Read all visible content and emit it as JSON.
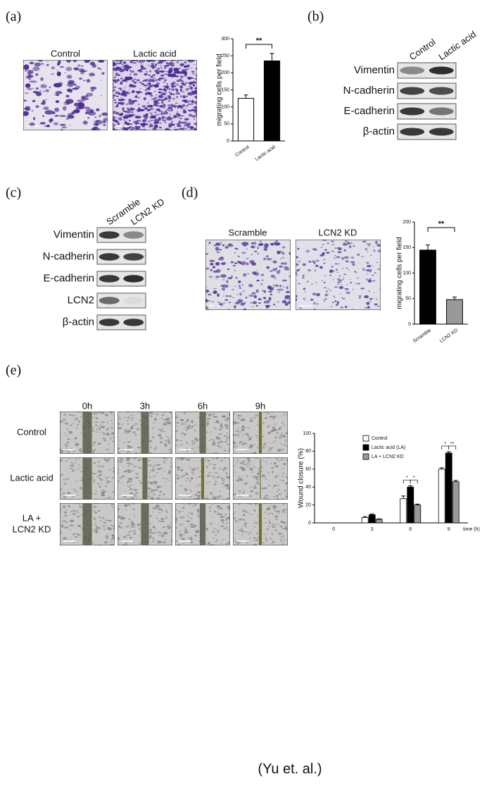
{
  "panel_labels": [
    "(a)",
    "(b)",
    "(c)",
    "(d)",
    "(e)"
  ],
  "panel_a": {
    "image_labels": [
      "Control",
      "Lactic acid"
    ]
  },
  "panel_b": {
    "columns": [
      "Control",
      "Lactic acid"
    ],
    "rows": [
      "Vimentin",
      "N-cadherin",
      "E-cadherin",
      "β-actin"
    ]
  },
  "panel_c": {
    "columns": [
      "Scramble",
      "LCN2 KD"
    ],
    "rows": [
      "Vimentin",
      "N-cadherin",
      "E-cadherin",
      "LCN2",
      "β-actin"
    ]
  },
  "panel_d": {
    "image_labels": [
      "Scramble",
      "LCN2 KD"
    ]
  },
  "panel_e": {
    "time_labels": [
      "0h",
      "3h",
      "6h",
      "9h"
    ],
    "row_labels": [
      [
        "Control"
      ],
      [
        "Lactic acid"
      ],
      [
        "LA +",
        "LCN2 KD"
      ]
    ]
  },
  "chart_data": [
    {
      "type": "bar",
      "ylabel": "migrating cells per field",
      "categories": [
        "Control",
        "Lactic acid"
      ],
      "values": [
        125,
        235
      ],
      "errors": [
        10,
        22
      ],
      "colors": [
        "#ffffff",
        "#000000"
      ],
      "ylim": [
        0,
        300
      ],
      "yticks": [
        0,
        50,
        100,
        150,
        200,
        250,
        300
      ],
      "annotations": [
        "**"
      ]
    },
    {
      "type": "bar",
      "ylabel": "migrating cells per field",
      "categories": [
        "Scramble",
        "LCN2 KD"
      ],
      "values": [
        145,
        48
      ],
      "errors": [
        10,
        5
      ],
      "colors": [
        "#000000",
        "#999999"
      ],
      "ylim": [
        0,
        200
      ],
      "yticks": [
        0,
        50,
        100,
        150,
        200
      ],
      "annotations": [
        "**"
      ]
    },
    {
      "type": "grouped_bar",
      "ylabel": "Wound closure (%)",
      "xlabel": "time (h)",
      "categories": [
        "0",
        "3",
        "6",
        "9"
      ],
      "series": [
        {
          "name": "Control",
          "color": "#ffffff",
          "values": [
            0,
            6,
            27,
            60
          ],
          "errors": [
            0,
            1,
            3,
            1.5
          ]
        },
        {
          "name": "Lactic acid (LA)",
          "color": "#000000",
          "values": [
            0,
            9,
            40,
            78
          ],
          "errors": [
            0,
            1,
            1.5,
            1.5
          ]
        },
        {
          "name": "LA + LCN2 KD",
          "color": "#999999",
          "values": [
            0,
            4,
            20,
            46
          ],
          "errors": [
            0,
            0.5,
            1,
            1.5
          ]
        }
      ],
      "ylim": [
        0,
        100
      ],
      "yticks": [
        0,
        20,
        40,
        60,
        80,
        100
      ],
      "annotations": [
        "*",
        "*",
        "*",
        "**"
      ]
    }
  ],
  "caption": "(Yu et. al.)"
}
